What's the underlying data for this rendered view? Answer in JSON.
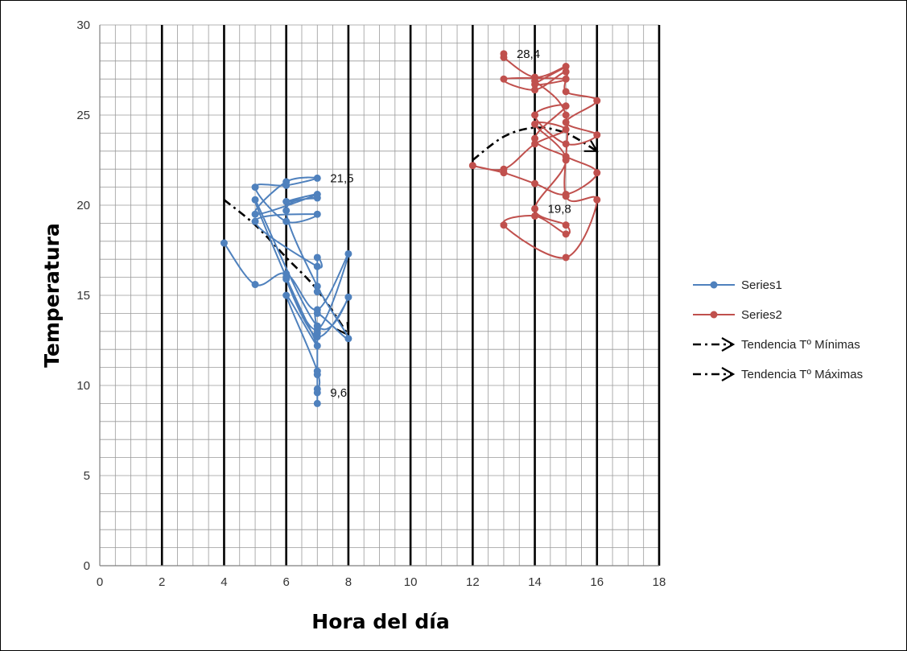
{
  "chart_data": {
    "type": "scatter",
    "title": "",
    "xlabel": "Hora del día",
    "ylabel": "Temperatura",
    "xlim": [
      0,
      18
    ],
    "ylim": [
      0,
      30
    ],
    "x_ticks": [
      "0",
      "2",
      "4",
      "6",
      "8",
      "10",
      "12",
      "14",
      "16",
      "18"
    ],
    "y_ticks": [
      "0",
      "5",
      "10",
      "15",
      "20",
      "25",
      "30"
    ],
    "grid": "minor grid on, major vertical gridlines every 2 hours",
    "legend_position": "right",
    "series": [
      {
        "name": "Series1",
        "color": "#4F81BD",
        "points": [
          [
            4,
            17.9
          ],
          [
            5,
            15.6
          ],
          [
            6,
            16.2
          ],
          [
            7,
            14.2
          ],
          [
            8,
            17.3
          ],
          [
            7,
            13.1
          ],
          [
            6,
            15.9
          ],
          [
            7,
            12.7
          ],
          [
            8,
            14.9
          ],
          [
            7,
            13.3
          ],
          [
            5,
            20.3
          ],
          [
            6,
            16.0
          ],
          [
            7,
            12.2
          ],
          [
            6,
            15.0
          ],
          [
            7,
            10.8
          ],
          [
            7,
            9.6
          ],
          [
            7,
            9.0
          ],
          [
            7,
            9.8
          ],
          [
            7,
            10.6
          ],
          [
            7,
            12.9
          ],
          [
            7,
            14.0
          ],
          [
            8,
            12.6
          ],
          [
            7,
            15.5
          ],
          [
            6,
            19.7
          ],
          [
            7,
            20.4
          ],
          [
            6,
            20.2
          ],
          [
            7,
            20.6
          ],
          [
            5,
            19.5
          ],
          [
            6,
            21.3
          ],
          [
            7,
            21.5
          ],
          [
            6,
            21.1
          ],
          [
            5,
            21.0
          ],
          [
            6,
            19.1
          ],
          [
            7,
            19.5
          ],
          [
            5,
            19.1
          ],
          [
            7,
            16.6
          ],
          [
            7,
            17.1
          ],
          [
            7,
            15.2
          ]
        ],
        "labels": [
          {
            "text": "21,5",
            "x": 7,
            "y": 21.5
          },
          {
            "text": "9,6",
            "x": 7,
            "y": 9.6
          }
        ]
      },
      {
        "name": "Series2",
        "color": "#C0504D",
        "points": [
          [
            13,
            28.4
          ],
          [
            13,
            28.2
          ],
          [
            14,
            27.1
          ],
          [
            15,
            27.7
          ],
          [
            14,
            26.7
          ],
          [
            15,
            27.0
          ],
          [
            13,
            27.0
          ],
          [
            14,
            26.4
          ],
          [
            15,
            27.4
          ],
          [
            15,
            26.3
          ],
          [
            16,
            25.8
          ],
          [
            15,
            24.6
          ],
          [
            16,
            23.9
          ],
          [
            15,
            23.4
          ],
          [
            14,
            25.0
          ],
          [
            15,
            25.5
          ],
          [
            14,
            23.7
          ],
          [
            15,
            22.7
          ],
          [
            16,
            21.8
          ],
          [
            15,
            20.6
          ],
          [
            14,
            21.2
          ],
          [
            13,
            21.8
          ],
          [
            12,
            22.2
          ],
          [
            13,
            22.0
          ],
          [
            14,
            23.4
          ],
          [
            15,
            24.2
          ],
          [
            14,
            24.5
          ],
          [
            15,
            22.5
          ],
          [
            14,
            19.8
          ],
          [
            15,
            18.9
          ],
          [
            15,
            18.4
          ],
          [
            14,
            19.4
          ],
          [
            13,
            18.9
          ],
          [
            15,
            17.1
          ],
          [
            16,
            20.3
          ],
          [
            15,
            20.5
          ],
          [
            15,
            25.0
          ],
          [
            14,
            26.9
          ]
        ],
        "labels": [
          {
            "text": "28,4",
            "x": 13,
            "y": 28.4
          },
          {
            "text": "19,8",
            "x": 14,
            "y": 19.8
          }
        ]
      }
    ],
    "trendlines": [
      {
        "name": "Tendencia Tº Mínimas",
        "color": "#000000",
        "style": "dash-dot with arrow end",
        "points": [
          [
            4,
            20.3
          ],
          [
            5,
            18.9
          ],
          [
            6,
            17.1
          ],
          [
            7,
            15.3
          ],
          [
            8,
            12.8
          ]
        ]
      },
      {
        "name": "Tendencia Tº Máximas",
        "color": "#000000",
        "style": "dash-dot with arrow end",
        "points": [
          [
            12,
            22.5
          ],
          [
            13,
            23.8
          ],
          [
            14,
            24.3
          ],
          [
            15,
            24.0
          ],
          [
            16,
            23.0
          ]
        ]
      }
    ],
    "legend": [
      {
        "label": "Series1",
        "kind": "line-marker",
        "color": "#4F81BD"
      },
      {
        "label": "Series2",
        "kind": "line-marker",
        "color": "#C0504D"
      },
      {
        "label": "Tendencia Tº Mínimas",
        "kind": "dashdot-arrow",
        "color": "#000000"
      },
      {
        "label": "Tendencia Tº Máximas",
        "kind": "dashdot-arrow",
        "color": "#000000"
      }
    ]
  }
}
